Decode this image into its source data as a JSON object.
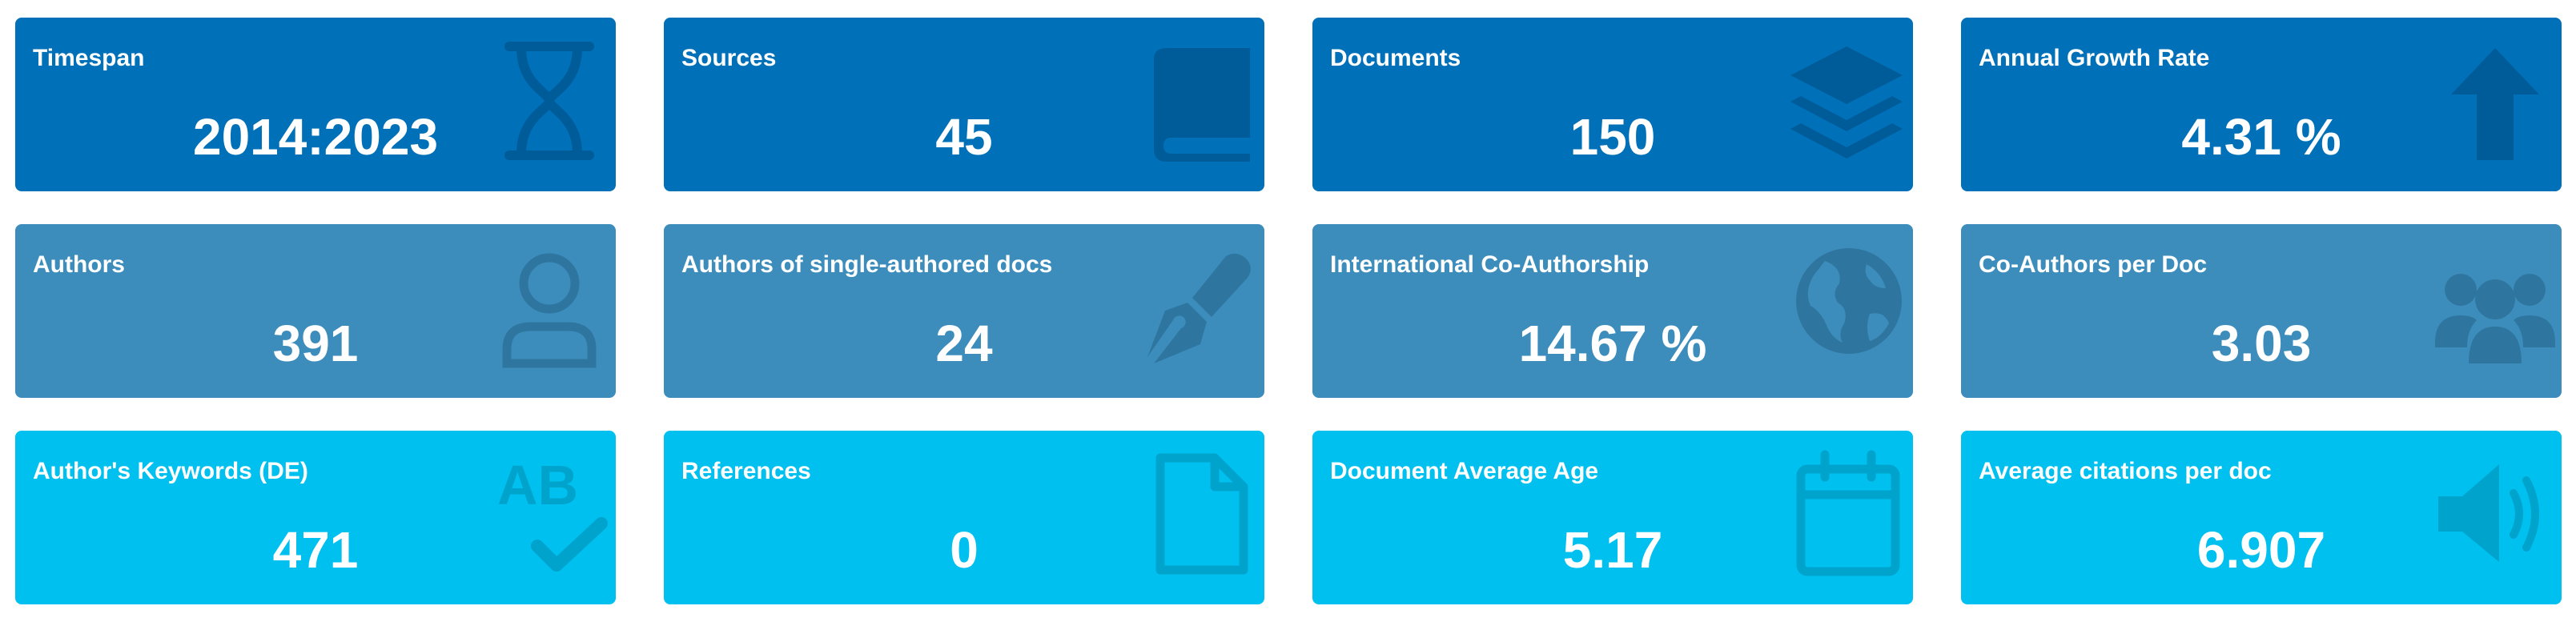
{
  "stats": [
    {
      "title": "Timespan",
      "value": "2014:2023",
      "icon": "hourglass-icon",
      "color": "#0070b8",
      "icon_color": "#005c99"
    },
    {
      "title": "Sources",
      "value": "45",
      "icon": "book-icon",
      "color": "#0070b8",
      "icon_color": "#005c99"
    },
    {
      "title": "Documents",
      "value": "150",
      "icon": "layers-icon",
      "color": "#0070b8",
      "icon_color": "#005c99"
    },
    {
      "title": "Annual Growth Rate",
      "value": "4.31 %",
      "icon": "arrow-up-icon",
      "color": "#0070b8",
      "icon_color": "#005c99"
    },
    {
      "title": "Authors",
      "value": "391",
      "icon": "user-icon",
      "color": "#3c8dbc",
      "icon_color": "#2e76a0"
    },
    {
      "title": "Authors of single-authored docs",
      "value": "24",
      "icon": "pen-nib-icon",
      "color": "#3c8dbc",
      "icon_color": "#2e76a0"
    },
    {
      "title": "International Co-Authorship",
      "value": "14.67 %",
      "icon": "globe-icon",
      "color": "#3c8dbc",
      "icon_color": "#2e76a0"
    },
    {
      "title": "Co-Authors per Doc",
      "value": "3.03",
      "icon": "users-icon",
      "color": "#3c8dbc",
      "icon_color": "#2e76a0"
    },
    {
      "title": "Author's Keywords (DE)",
      "value": "471",
      "icon": "spell-check-icon",
      "color": "#00c0ef",
      "icon_color": "#00a3cc"
    },
    {
      "title": "References",
      "value": "0",
      "icon": "file-icon",
      "color": "#00c0ef",
      "icon_color": "#00a3cc"
    },
    {
      "title": "Document Average Age",
      "value": "5.17",
      "icon": "calendar-icon",
      "color": "#00c0ef",
      "icon_color": "#00a3cc"
    },
    {
      "title": "Average citations per doc",
      "value": "6.907",
      "icon": "volume-icon",
      "color": "#00c0ef",
      "icon_color": "#00a3cc"
    }
  ],
  "icon_glyphs": {
    "ab": "AB"
  }
}
